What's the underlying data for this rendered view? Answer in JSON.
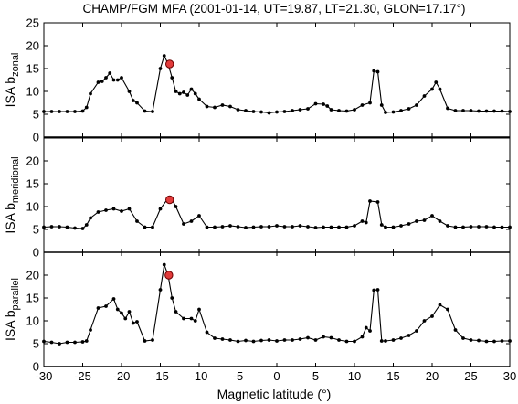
{
  "title": "CHAMP/FGM  MFA  (2001-01-14, UT=19.87, LT=21.30, GLON=17.17°)",
  "xlabel": "Magnetic latitude (°)",
  "chart_data": [
    {
      "type": "line",
      "ylabel_main": "ISA  b",
      "ylabel_sub": "zonal",
      "xlim": [
        -30,
        30
      ],
      "ylim": [
        0,
        25
      ],
      "xticks": [
        -30,
        -25,
        -20,
        -15,
        -10,
        -5,
        0,
        5,
        10,
        15,
        20,
        25,
        30
      ],
      "yticks": [
        0,
        5,
        10,
        15,
        20,
        25
      ],
      "x": [
        -30,
        -29,
        -28,
        -27,
        -26,
        -25,
        -24.5,
        -24,
        -23,
        -22.5,
        -22,
        -21.5,
        -21,
        -20.5,
        -20,
        -19,
        -18.5,
        -18,
        -17,
        -16,
        -15,
        -14.5,
        -14,
        -13.5,
        -13,
        -12.5,
        -12,
        -11.5,
        -11,
        -10.5,
        -10,
        -9,
        -8,
        -7,
        -6,
        -5,
        -4,
        -3,
        -2,
        -1,
        0,
        1,
        2,
        3,
        4,
        5,
        6,
        6.5,
        7,
        8,
        9,
        10,
        11,
        12,
        12.5,
        13,
        13.5,
        14,
        15,
        16,
        17,
        18,
        19,
        20,
        20.5,
        21,
        22,
        23,
        24,
        25,
        26,
        27,
        28,
        29,
        30
      ],
      "y": [
        5.6,
        5.6,
        5.6,
        5.6,
        5.6,
        5.7,
        6.5,
        9.5,
        12.0,
        12.2,
        13.0,
        14.0,
        12.5,
        12.5,
        13.0,
        10.0,
        8.0,
        7.5,
        5.7,
        5.6,
        15.0,
        17.8,
        16.0,
        13.0,
        10.0,
        9.5,
        9.8,
        9.2,
        10.5,
        9.5,
        8.3,
        6.7,
        6.5,
        7.0,
        6.7,
        6.0,
        5.8,
        5.6,
        5.5,
        5.3,
        5.5,
        5.6,
        5.8,
        6.0,
        6.2,
        7.3,
        7.2,
        6.8,
        6.0,
        5.8,
        5.7,
        6.0,
        7.0,
        7.5,
        14.5,
        14.3,
        7.0,
        5.4,
        5.5,
        5.8,
        6.2,
        7.0,
        9.0,
        10.5,
        12.0,
        10.5,
        6.3,
        5.8,
        5.8,
        5.8,
        5.7,
        5.7,
        5.7,
        5.7,
        5.6
      ],
      "highlight": {
        "x": -13.8,
        "y": 16.0
      },
      "grid": false
    },
    {
      "type": "line",
      "ylabel_main": "ISA  b",
      "ylabel_sub": "meridional",
      "xlim": [
        -30,
        30
      ],
      "ylim": [
        0,
        25
      ],
      "xticks": [
        -30,
        -25,
        -20,
        -15,
        -10,
        -5,
        0,
        5,
        10,
        15,
        20,
        25,
        30
      ],
      "yticks": [
        0,
        5,
        10,
        15,
        20
      ],
      "x": [
        -30,
        -29,
        -28,
        -27,
        -26,
        -25,
        -24.5,
        -24,
        -23,
        -22,
        -21,
        -20,
        -19,
        -18,
        -17,
        -16,
        -15,
        -14,
        -13.5,
        -13,
        -12,
        -11,
        -10,
        -9,
        -8,
        -7,
        -6,
        -5,
        -4,
        -3,
        -2,
        -1,
        0,
        1,
        2,
        3,
        4,
        5,
        6,
        7,
        8,
        9,
        10,
        11,
        11.5,
        12,
        13,
        13.5,
        14,
        15,
        16,
        17,
        18,
        19,
        20,
        21,
        22,
        23,
        24,
        25,
        26,
        27,
        28,
        29,
        30
      ],
      "y": [
        5.5,
        5.6,
        5.6,
        5.5,
        5.3,
        5.2,
        6.0,
        7.5,
        8.8,
        9.2,
        9.5,
        9.0,
        9.5,
        6.8,
        5.5,
        5.5,
        9.5,
        11.8,
        11.5,
        10.0,
        6.2,
        6.8,
        8.0,
        5.5,
        5.5,
        5.6,
        5.8,
        5.6,
        5.4,
        5.5,
        5.6,
        5.6,
        5.8,
        5.6,
        5.6,
        5.8,
        5.6,
        5.4,
        5.5,
        5.5,
        5.5,
        5.5,
        5.8,
        6.8,
        6.5,
        11.2,
        11.0,
        6.0,
        5.5,
        5.5,
        5.8,
        6.2,
        6.8,
        7.0,
        8.0,
        6.8,
        5.8,
        5.5,
        5.5,
        5.6,
        5.6,
        5.6,
        5.5,
        5.5,
        5.5
      ],
      "highlight": {
        "x": -13.8,
        "y": 11.5
      },
      "grid": false
    },
    {
      "type": "line",
      "ylabel_main": "ISA  b",
      "ylabel_sub": "parallel",
      "xlim": [
        -30,
        30
      ],
      "ylim": [
        0,
        25
      ],
      "xticks": [
        -30,
        -25,
        -20,
        -15,
        -10,
        -5,
        0,
        5,
        10,
        15,
        20,
        25,
        30
      ],
      "yticks": [
        0,
        5,
        10,
        15,
        20
      ],
      "x": [
        -30,
        -29,
        -28,
        -27,
        -26,
        -25,
        -24.5,
        -24,
        -23,
        -22,
        -21,
        -20.5,
        -20,
        -19.5,
        -19,
        -18.5,
        -18,
        -17,
        -16,
        -15,
        -14.5,
        -14,
        -13.5,
        -13,
        -12,
        -11,
        -10.5,
        -10,
        -9,
        -8,
        -7,
        -6,
        -5,
        -4,
        -3,
        -2,
        -1,
        0,
        1,
        2,
        3,
        4,
        5,
        6,
        7,
        8,
        9,
        10,
        11,
        11.5,
        12,
        12.5,
        13,
        13.5,
        14,
        15,
        16,
        17,
        18,
        19,
        20,
        21,
        22,
        23,
        24,
        25,
        26,
        27,
        28,
        29,
        30
      ],
      "y": [
        5.5,
        5.3,
        5.0,
        5.3,
        5.3,
        5.4,
        5.6,
        8.0,
        12.8,
        13.2,
        14.8,
        12.5,
        11.7,
        10.5,
        12.0,
        9.5,
        9.8,
        5.6,
        5.8,
        16.8,
        22.3,
        20.0,
        15.0,
        12.0,
        10.5,
        10.5,
        10.0,
        12.5,
        7.5,
        6.2,
        6.0,
        5.8,
        5.5,
        5.7,
        5.5,
        5.7,
        5.8,
        5.6,
        5.8,
        5.8,
        6.0,
        6.3,
        5.8,
        6.5,
        6.3,
        5.8,
        5.5,
        5.5,
        6.5,
        8.5,
        7.8,
        16.7,
        16.8,
        5.6,
        5.6,
        5.8,
        6.2,
        6.8,
        7.8,
        10.0,
        11.0,
        13.5,
        12.5,
        8.0,
        6.2,
        5.8,
        5.7,
        5.5,
        5.5,
        5.6,
        5.6
      ],
      "highlight": {
        "x": -13.9,
        "y": 20.0
      },
      "grid": false
    }
  ]
}
